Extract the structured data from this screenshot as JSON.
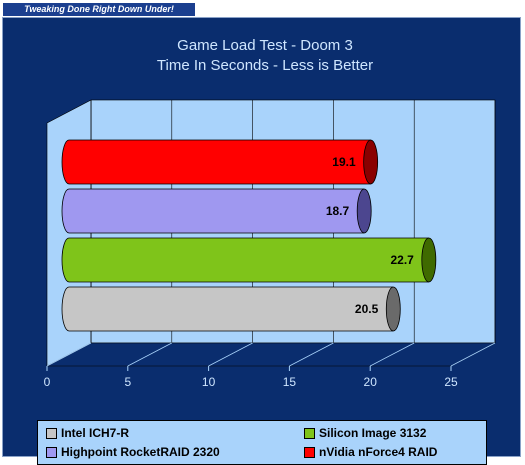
{
  "banner": {
    "text": "Tweaking Done Right Down Under!"
  },
  "colors": {
    "background": "#0a2d6e",
    "plot_back": "#a9d3fb",
    "plot_floor": "#0a2d6e",
    "text": "#cfe6ff"
  },
  "chart_data": {
    "type": "bar",
    "orientation": "horizontal",
    "style": "3d-cylinder",
    "title": [
      "Game Load Test - Doom 3",
      "Time In Seconds - Less is Better"
    ],
    "xlim": [
      0,
      25
    ],
    "ticks": [
      "0",
      "5",
      "10",
      "15",
      "20",
      "25"
    ],
    "grid": true,
    "legend_position": "bottom",
    "series": [
      {
        "name": "nVidia nForce4 RAID",
        "value": 19.1,
        "label": "19.1",
        "color": "#ff0000",
        "dark": "#8a0000"
      },
      {
        "name": "Highpoint RocketRAID 2320",
        "value": 18.7,
        "label": "18.7",
        "color": "#9f98f0",
        "dark": "#4c468f"
      },
      {
        "name": "Silicon Image 3132",
        "value": 22.7,
        "label": "22.7",
        "color": "#7fc41a",
        "dark": "#3f6a00"
      },
      {
        "name": "Intel ICH7-R",
        "value": 20.5,
        "label": "20.5",
        "color": "#c6c6c6",
        "dark": "#6a6a6a"
      }
    ],
    "legend": [
      {
        "name": "Intel ICH7-R",
        "color": "#c6c6c6"
      },
      {
        "name": "Silicon Image 3132",
        "color": "#7fc41a"
      },
      {
        "name": "Highpoint RocketRAID 2320",
        "color": "#9f98f0"
      },
      {
        "name": "nVidia nForce4 RAID",
        "color": "#ff0000"
      }
    ]
  }
}
